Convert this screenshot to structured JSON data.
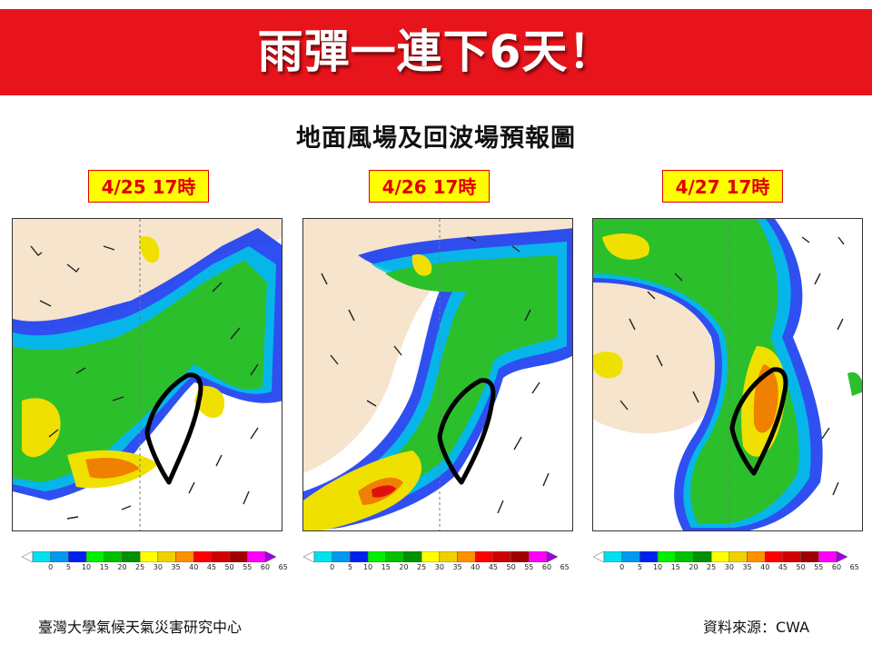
{
  "banner": {
    "title": "雨彈一連下6天！",
    "color": "#e8141b"
  },
  "subtitle": "地面風場及回波場預報圖",
  "maps": [
    {
      "date_label": "4/25 17時"
    },
    {
      "date_label": "4/26 17時"
    },
    {
      "date_label": "4/27 17時"
    }
  ],
  "colorbar": {
    "ticks": [
      "0",
      "5",
      "10",
      "15",
      "20",
      "25",
      "30",
      "35",
      "40",
      "45",
      "50",
      "55",
      "60",
      "65"
    ],
    "colors": [
      "#ffffff",
      "#00e0f0",
      "#0098f0",
      "#0020f0",
      "#00f000",
      "#00c000",
      "#009000",
      "#ffff00",
      "#f0d000",
      "#ff9000",
      "#ff0000",
      "#d00000",
      "#a00000",
      "#ff00ff",
      "#a000e0"
    ]
  },
  "footer": {
    "left": "臺灣大學氣候天氣災害研究中心",
    "right": "資料來源：CWA"
  }
}
